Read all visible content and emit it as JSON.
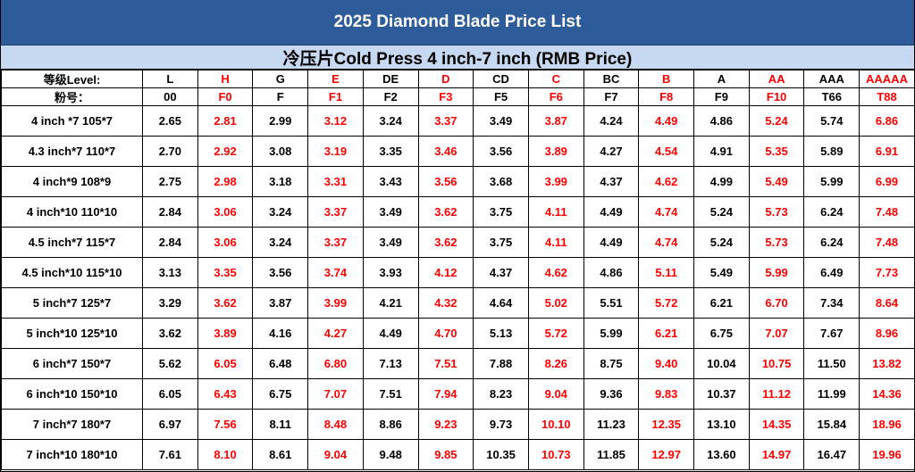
{
  "title": "2025 Diamond Blade Price List",
  "subtitle": "冷压片Cold Press 4 inch-7 inch (RMB Price)",
  "header_label_level": "等级Level:",
  "header_label_powder": "粉号：",
  "colors": {
    "title_bg": "#2e5c9a",
    "subtitle_bg": "#c6d9f1",
    "red_text": "#ff0000",
    "black_text": "#000000"
  },
  "columns": [
    {
      "level": "L",
      "powder": "00",
      "red": false
    },
    {
      "level": "H",
      "powder": "F0",
      "red": true
    },
    {
      "level": "G",
      "powder": "F",
      "red": false
    },
    {
      "level": "E",
      "powder": "F1",
      "red": true
    },
    {
      "level": "DE",
      "powder": "F2",
      "red": false
    },
    {
      "level": "D",
      "powder": "F3",
      "red": true
    },
    {
      "level": "CD",
      "powder": "F5",
      "red": false
    },
    {
      "level": "C",
      "powder": "F6",
      "red": true
    },
    {
      "level": "BC",
      "powder": "F7",
      "red": false
    },
    {
      "level": "B",
      "powder": "F8",
      "red": true
    },
    {
      "level": "A",
      "powder": "F9",
      "red": false
    },
    {
      "level": "AA",
      "powder": "F10",
      "red": true
    },
    {
      "level": "AAA",
      "powder": "T66",
      "red": false
    },
    {
      "level": "AAAAA",
      "powder": "T88",
      "red": true
    }
  ],
  "rows": [
    {
      "size": "4 inch *7  105*7",
      "prices": [
        "2.65",
        "2.81",
        "2.99",
        "3.12",
        "3.24",
        "3.37",
        "3.49",
        "3.87",
        "4.24",
        "4.49",
        "4.86",
        "5.24",
        "5.74",
        "6.86"
      ]
    },
    {
      "size": "4.3 inch*7 110*7",
      "prices": [
        "2.70",
        "2.92",
        "3.08",
        "3.19",
        "3.35",
        "3.46",
        "3.56",
        "3.89",
        "4.27",
        "4.54",
        "4.91",
        "5.35",
        "5.89",
        "6.91"
      ]
    },
    {
      "size": "4 inch*9   108*9",
      "prices": [
        "2.75",
        "2.98",
        "3.18",
        "3.31",
        "3.43",
        "3.56",
        "3.68",
        "3.99",
        "4.37",
        "4.62",
        "4.99",
        "5.49",
        "5.99",
        "6.99"
      ]
    },
    {
      "size": "4 inch*10  110*10",
      "prices": [
        "2.84",
        "3.06",
        "3.24",
        "3.37",
        "3.49",
        "3.62",
        "3.75",
        "4.11",
        "4.49",
        "4.74",
        "5.24",
        "5.73",
        "6.24",
        "7.48"
      ]
    },
    {
      "size": "4.5 inch*7 115*7",
      "prices": [
        "2.84",
        "3.06",
        "3.24",
        "3.37",
        "3.49",
        "3.62",
        "3.75",
        "4.11",
        "4.49",
        "4.74",
        "5.24",
        "5.73",
        "6.24",
        "7.48"
      ]
    },
    {
      "size": "4.5 inch*10 115*10",
      "prices": [
        "3.13",
        "3.35",
        "3.56",
        "3.74",
        "3.93",
        "4.12",
        "4.37",
        "4.62",
        "4.86",
        "5.11",
        "5.49",
        "5.99",
        "6.49",
        "7.73"
      ]
    },
    {
      "size": "5 inch*7  125*7",
      "prices": [
        "3.29",
        "3.62",
        "3.87",
        "3.99",
        "4.21",
        "4.32",
        "4.64",
        "5.02",
        "5.51",
        "5.72",
        "6.21",
        "6.70",
        "7.34",
        "8.64"
      ]
    },
    {
      "size": "5 inch*10 125*10",
      "prices": [
        "3.62",
        "3.89",
        "4.16",
        "4.27",
        "4.49",
        "4.70",
        "5.13",
        "5.72",
        "5.99",
        "6.21",
        "6.75",
        "7.07",
        "7.67",
        "8.96"
      ]
    },
    {
      "size": "6 inch*7  150*7",
      "prices": [
        "5.62",
        "6.05",
        "6.48",
        "6.80",
        "7.13",
        "7.51",
        "7.88",
        "8.26",
        "8.75",
        "9.40",
        "10.04",
        "10.75",
        "11.50",
        "13.82"
      ]
    },
    {
      "size": "6 inch*10 150*10",
      "prices": [
        "6.05",
        "6.43",
        "6.75",
        "7.07",
        "7.51",
        "7.94",
        "8.23",
        "9.04",
        "9.36",
        "9.83",
        "10.37",
        "11.12",
        "11.99",
        "14.36"
      ]
    },
    {
      "size": "7 inch*7  180*7",
      "prices": [
        "6.97",
        "7.56",
        "8.11",
        "8.48",
        "8.86",
        "9.23",
        "9.73",
        "10.10",
        "11.23",
        "12.35",
        "13.10",
        "14.35",
        "15.84",
        "18.96"
      ]
    },
    {
      "size": "7 inch*10 180*10",
      "prices": [
        "7.61",
        "8.10",
        "8.61",
        "9.04",
        "9.48",
        "9.85",
        "10.35",
        "10.73",
        "11.85",
        "12.97",
        "13.60",
        "14.97",
        "16.47",
        "19.96"
      ]
    }
  ]
}
